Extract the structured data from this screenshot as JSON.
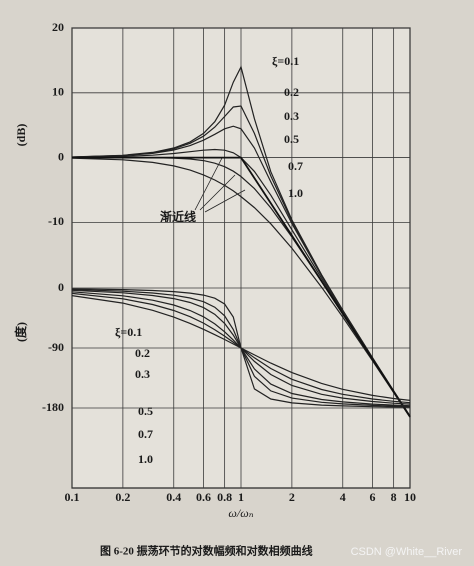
{
  "chart_data": {
    "type": "line",
    "caption": "图 6-20  振荡环节的对数幅频和对数相频曲线",
    "watermark": "CSDN @White__River",
    "xlabel": "ω/ωₙ",
    "ylabel": "(dB)",
    "y2label": "(度)",
    "annotation": "渐近线",
    "xscale": "log",
    "grid": true,
    "xlim": [
      0.1,
      10
    ],
    "xticks": [
      0.1,
      0.2,
      0.4,
      0.6,
      0.8,
      1,
      2,
      4,
      6,
      8,
      10
    ],
    "ylim": [
      -51,
      20
    ],
    "yticks": [
      20,
      10,
      0,
      -10
    ],
    "y2lim": [
      -300,
      390
    ],
    "y2ticks": [
      0,
      -90,
      -180
    ],
    "x": [
      0.1,
      0.2,
      0.3,
      0.4,
      0.5,
      0.6,
      0.7,
      0.8,
      0.9,
      1,
      1.2,
      1.5,
      2,
      3,
      4,
      6,
      8,
      10
    ],
    "series": [
      {
        "name": "ξ=0.1",
        "color": "#222222",
        "values": [
          0.09,
          0.35,
          0.8,
          1.48,
          2.42,
          3.73,
          5.53,
          8.09,
          11.64,
          13.98,
          6.0,
          -2.18,
          -9.62,
          -18.09,
          -23.53,
          -30.89,
          -35.99,
          -39.91
        ]
      },
      {
        "name": "0.2",
        "color": "#222222",
        "values": [
          0.08,
          0.32,
          0.74,
          1.36,
          2.2,
          3.3,
          4.7,
          6.34,
          7.81,
          7.96,
          3.73,
          -2.84,
          -9.84,
          -18.16,
          -23.57,
          -30.9,
          -36.0,
          -39.92
        ]
      },
      {
        "name": "0.3",
        "color": "#222222",
        "values": [
          0.07,
          0.29,
          0.65,
          1.17,
          1.85,
          2.68,
          3.6,
          4.44,
          4.85,
          4.44,
          1.48,
          -3.75,
          -10.19,
          -18.28,
          -23.63,
          -30.93,
          -36.01,
          -39.93
        ]
      },
      {
        "name": "0.5",
        "color": "#222222",
        "values": [
          0.04,
          0.17,
          0.37,
          0.63,
          0.9,
          1.14,
          1.25,
          1.14,
          0.73,
          0,
          -2.13,
          -5.81,
          -11.14,
          -18.63,
          -23.82,
          -31.01,
          -36.06,
          -39.96
        ]
      },
      {
        "name": "0.7",
        "color": "#222222",
        "values": [
          0,
          0,
          -0.02,
          -0.08,
          -0.22,
          -0.47,
          -0.87,
          -1.41,
          -2.11,
          -2.92,
          -4.79,
          -7.76,
          -12.26,
          -19.12,
          -24.09,
          -31.12,
          -36.12,
          -40
        ]
      },
      {
        "name": "1.0",
        "color": "#222222",
        "values": [
          -0.09,
          -0.34,
          -0.75,
          -1.29,
          -1.94,
          -2.67,
          -3.46,
          -4.29,
          -5.15,
          -6.02,
          -7.72,
          -10.22,
          -13.98,
          -20,
          -24.61,
          -31.36,
          -36.26,
          -40.09
        ]
      },
      {
        "name": "渐近线",
        "color": "#111111",
        "values": [
          0,
          0,
          0,
          0,
          0,
          0,
          0,
          0,
          0,
          0,
          -3.17,
          -7.04,
          -12.04,
          -19.08,
          -24.08,
          -31.13,
          -36.12,
          -40
        ]
      },
      {
        "name": "ξ=0.1",
        "color": "#222222",
        "axis": "y2",
        "values": [
          -1.16,
          -2.39,
          -3.77,
          -5.44,
          -7.59,
          -10.62,
          -15.35,
          -23.96,
          -43.45,
          -90,
          -151.4,
          -166.5,
          -172.4,
          -175.7,
          -176.9,
          -178.0,
          -178.5,
          -178.8
        ]
      },
      {
        "name": "0.2",
        "color": "#222222",
        "axis": "y2",
        "values": [
          -2.31,
          -4.76,
          -7.51,
          -10.78,
          -14.93,
          -20.56,
          -28.77,
          -41.63,
          -62.18,
          -90,
          -132.5,
          -154.4,
          -165.1,
          -171.5,
          -173.9,
          -176.1,
          -177.1,
          -177.7
        ]
      },
      {
        "name": "0.3",
        "color": "#222222",
        "axis": "y2",
        "values": [
          -3.47,
          -7.13,
          -11.19,
          -15.95,
          -21.8,
          -29.36,
          -39.47,
          -53.13,
          -70.62,
          -90,
          -121.4,
          -144.2,
          -158.2,
          -167.3,
          -170.9,
          -174.1,
          -175.6,
          -176.5
        ]
      },
      {
        "name": "0.5",
        "color": "#222222",
        "axis": "y2",
        "values": [
          -5.77,
          -11.77,
          -18.25,
          -25.46,
          -33.69,
          -43.15,
          -53.92,
          -65.77,
          -78.08,
          -90,
          -110.1,
          -129.8,
          -146.3,
          -159.4,
          -165.1,
          -170.3,
          -172.8,
          -174.2
        ]
      },
      {
        "name": "0.7",
        "color": "#222222",
        "axis": "y2",
        "values": [
          -8.05,
          -16.26,
          -24.78,
          -33.69,
          -43.03,
          -52.7,
          -62.51,
          -72.18,
          -81.43,
          -90,
          -104.7,
          -120.8,
          -137.0,
          -152.3,
          -159.5,
          -166.5,
          -169.9,
          -172.0
        ]
      },
      {
        "name": "1.0",
        "color": "#222222",
        "axis": "y2",
        "values": [
          -11.42,
          -22.62,
          -33.4,
          -43.6,
          -53.13,
          -61.93,
          -69.98,
          -77.32,
          -83.97,
          -90,
          -100.4,
          -112.6,
          -126.9,
          -143.1,
          -151.9,
          -161.1,
          -165.75,
          -168.6
        ]
      }
    ]
  }
}
